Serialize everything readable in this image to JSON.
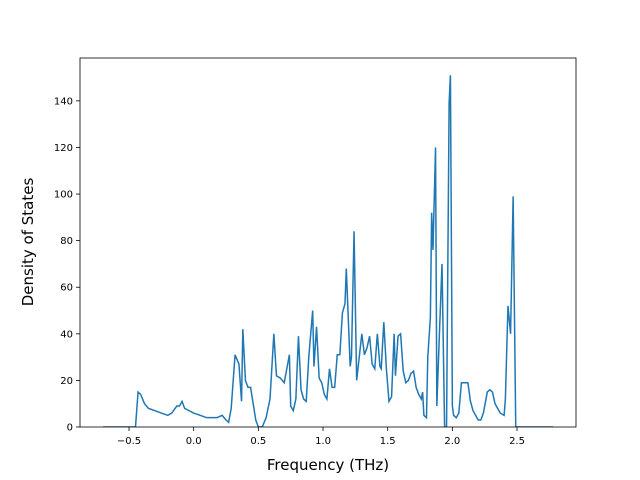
{
  "chart_data": {
    "type": "line",
    "xlabel": "Frequency (THz)",
    "ylabel": "Density of States",
    "xlim": [
      -0.879,
      2.956
    ],
    "ylim": [
      0,
      158.4
    ],
    "xticks": [
      {
        "value": -0.5,
        "label": "−0.5"
      },
      {
        "value": 0,
        "label": "0.0"
      },
      0.5,
      {
        "value": 1,
        "label": "1.0"
      },
      1.5,
      {
        "value": 2,
        "label": "2.0"
      },
      2.5
    ],
    "yticks": [
      0,
      20,
      40,
      60,
      80,
      100,
      120,
      140
    ],
    "grid": false,
    "series": [
      {
        "color": "#1f77b4",
        "x": [
          -0.7,
          -0.45,
          -0.43,
          -0.41,
          -0.38,
          -0.35,
          -0.3,
          -0.25,
          -0.2,
          -0.17,
          -0.13,
          -0.11,
          -0.09,
          -0.07,
          0.0,
          0.05,
          0.1,
          0.15,
          0.18,
          0.22,
          0.25,
          0.27,
          0.29,
          0.32,
          0.35,
          0.37,
          0.38,
          0.4,
          0.42,
          0.44,
          0.46,
          0.48,
          0.5,
          0.53,
          0.56,
          0.59,
          0.62,
          0.64,
          0.67,
          0.7,
          0.72,
          0.74,
          0.75,
          0.77,
          0.79,
          0.81,
          0.83,
          0.85,
          0.87,
          0.89,
          0.92,
          0.93,
          0.95,
          0.97,
          0.99,
          1.01,
          1.03,
          1.05,
          1.07,
          1.09,
          1.11,
          1.13,
          1.15,
          1.17,
          1.18,
          1.2,
          1.21,
          1.22,
          1.24,
          1.26,
          1.28,
          1.3,
          1.32,
          1.34,
          1.36,
          1.38,
          1.4,
          1.42,
          1.44,
          1.45,
          1.47,
          1.49,
          1.51,
          1.53,
          1.55,
          1.56,
          1.58,
          1.6,
          1.62,
          1.64,
          1.66,
          1.68,
          1.7,
          1.72,
          1.74,
          1.76,
          1.77,
          1.78,
          1.8,
          1.81,
          1.83,
          1.84,
          1.85,
          1.87,
          1.88,
          1.9,
          1.92,
          1.94,
          1.955,
          1.975,
          1.985,
          2.0,
          2.01,
          2.03,
          2.05,
          2.07,
          2.1,
          2.12,
          2.14,
          2.16,
          2.18,
          2.2,
          2.22,
          2.24,
          2.27,
          2.29,
          2.31,
          2.33,
          2.35,
          2.37,
          2.4,
          2.41,
          2.43,
          2.45,
          2.47,
          2.49,
          2.78
        ],
        "values": [
          0,
          0,
          15,
          14,
          10,
          8,
          7,
          6,
          5,
          6,
          9,
          9,
          11,
          8,
          6,
          5,
          4,
          4,
          4,
          5,
          3,
          2,
          8,
          31,
          27,
          11,
          42,
          20,
          17,
          17,
          10,
          3,
          0,
          0,
          4,
          12,
          40,
          22,
          21,
          19,
          25,
          31,
          9,
          7,
          12,
          39,
          16,
          12,
          11,
          30,
          50,
          26,
          43,
          21,
          19,
          14,
          12,
          25,
          17,
          17,
          31,
          31,
          49,
          53,
          68,
          40,
          26,
          30,
          84,
          20,
          30,
          40,
          31,
          34,
          39,
          27,
          25,
          40,
          26,
          25,
          45,
          25,
          11,
          13,
          40,
          22,
          39,
          40,
          24,
          19,
          20,
          23,
          24,
          17,
          14,
          12,
          15,
          5,
          4,
          30,
          47,
          92,
          76,
          120,
          9,
          40,
          70,
          0,
          0,
          139,
          151,
          9,
          5,
          4,
          6,
          19,
          19,
          19,
          11,
          7,
          5,
          3,
          3,
          6,
          15,
          16,
          15,
          10,
          8,
          6,
          5,
          12,
          52,
          40,
          99,
          0,
          0
        ]
      }
    ]
  }
}
